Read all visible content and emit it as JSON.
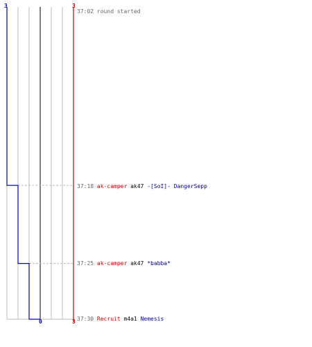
{
  "scores": {
    "top_left": "3",
    "top_right": "3",
    "bottom_left": "0",
    "bottom_right": "3"
  },
  "colors": {
    "team_blue": "#0000cc",
    "team_red": "#cc0000",
    "grid": "#bbbbbb",
    "divider": "#555555",
    "connector": "#bbbbbb"
  },
  "timeline": {
    "start": "37:02",
    "end": "37:30",
    "blue_alive_steps": [
      {
        "time": "37:02",
        "alive": 3
      },
      {
        "time": "37:18",
        "alive": 2
      },
      {
        "time": "37:25",
        "alive": 1
      },
      {
        "time": "37:30",
        "alive": 0
      }
    ],
    "red_alive": 3
  },
  "events": [
    {
      "time": "37:02",
      "message": "round started"
    },
    {
      "time": "37:18",
      "killer": "ak-camper",
      "weapon": "ak47",
      "victim": "-[SoI]- DangerSepp"
    },
    {
      "time": "37:25",
      "killer": "ak-camper",
      "weapon": "ak47",
      "victim": "*babba*"
    },
    {
      "time": "37:30",
      "killer": "Recruit",
      "weapon": "m4a1",
      "victim": "Nemesis"
    }
  ]
}
